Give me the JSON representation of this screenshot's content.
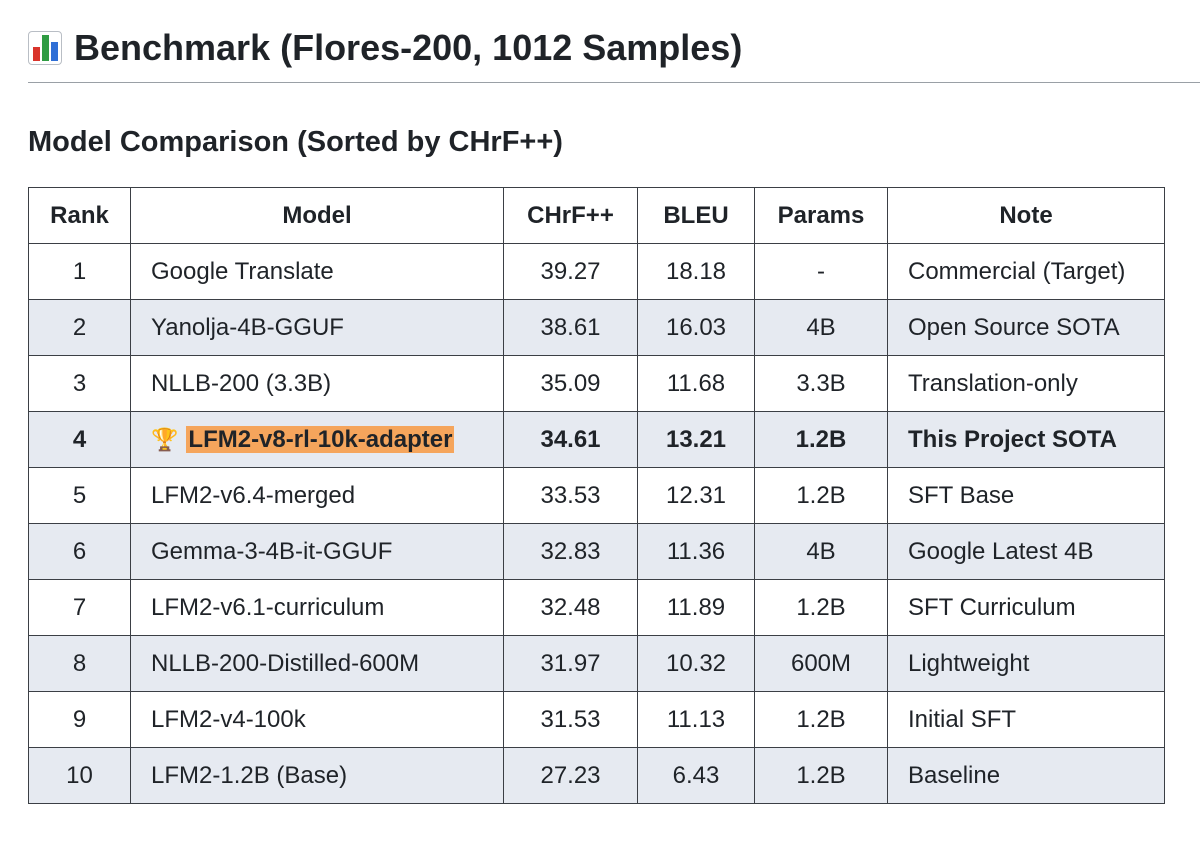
{
  "header": {
    "icon": "bar-chart-emoji-icon",
    "title": "Benchmark (Flores-200, 1012 Samples)"
  },
  "section": {
    "title": "Model Comparison (Sorted by CHrF++)"
  },
  "table": {
    "columns": [
      "Rank",
      "Model",
      "CHrF++",
      "BLEU",
      "Params",
      "Note"
    ],
    "rows": [
      {
        "rank": "1",
        "model": "Google Translate",
        "chrf": "39.27",
        "bleu": "18.18",
        "params": "-",
        "note": "Commercial (Target)"
      },
      {
        "rank": "2",
        "model": "Yanolja-4B-GGUF",
        "chrf": "38.61",
        "bleu": "16.03",
        "params": "4B",
        "note": "Open Source SOTA"
      },
      {
        "rank": "3",
        "model": "NLLB-200 (3.3B)",
        "chrf": "35.09",
        "bleu": "11.68",
        "params": "3.3B",
        "note": "Translation-only"
      },
      {
        "rank": "4",
        "model": "LFM2-v8-rl-10k-adapter",
        "chrf": "34.61",
        "bleu": "13.21",
        "params": "1.2B",
        "note": "This Project SOTA",
        "trophy": "🏆",
        "highlight_color": "#f5a55c"
      },
      {
        "rank": "5",
        "model": "LFM2-v6.4-merged",
        "chrf": "33.53",
        "bleu": "12.31",
        "params": "1.2B",
        "note": "SFT Base"
      },
      {
        "rank": "6",
        "model": "Gemma-3-4B-it-GGUF",
        "chrf": "32.83",
        "bleu": "11.36",
        "params": "4B",
        "note": "Google Latest 4B"
      },
      {
        "rank": "7",
        "model": "LFM2-v6.1-curriculum",
        "chrf": "32.48",
        "bleu": "11.89",
        "params": "1.2B",
        "note": "SFT Curriculum"
      },
      {
        "rank": "8",
        "model": "NLLB-200-Distilled-600M",
        "chrf": "31.97",
        "bleu": "10.32",
        "params": "600M",
        "note": "Lightweight"
      },
      {
        "rank": "9",
        "model": "LFM2-v4-100k",
        "chrf": "31.53",
        "bleu": "11.13",
        "params": "1.2B",
        "note": "Initial SFT"
      },
      {
        "rank": "10",
        "model": "LFM2-1.2B (Base)",
        "chrf": "27.23",
        "bleu": "6.43",
        "params": "1.2B",
        "note": "Baseline"
      }
    ]
  },
  "colors": {
    "alt_row": "#e6eaf1",
    "border": "#3b3f45",
    "highlight": "#f5a55c"
  }
}
